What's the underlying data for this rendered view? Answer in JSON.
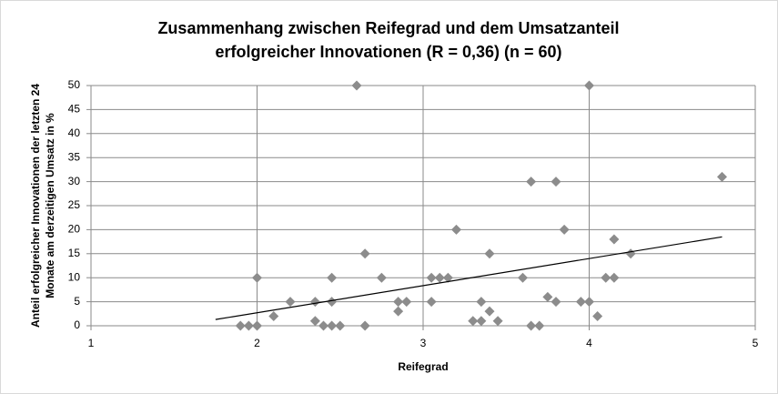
{
  "chart_data": {
    "type": "scatter",
    "title": [
      "Zusammenhang zwischen Reifegrad und dem Umsatzanteil",
      "erfolgreicher Innovationen (R = 0,36) (n = 60)"
    ],
    "x_label": "Reifegrad",
    "y_label": [
      "Anteil erfolgreicher Innovationen der letzten 24",
      "Monate am derzeitigen Umsatz in %"
    ],
    "x": [
      2.6,
      4.0,
      4.8,
      3.65,
      3.8,
      3.2,
      3.85,
      4.15,
      2.65,
      3.4,
      4.25,
      2.0,
      2.45,
      2.75,
      3.05,
      3.1,
      3.15,
      3.6,
      4.1,
      4.15,
      3.75,
      2.2,
      2.35,
      2.45,
      2.85,
      2.9,
      3.05,
      3.35,
      3.8,
      3.95,
      4.0,
      2.85,
      3.4,
      2.1,
      4.05,
      2.35,
      3.3,
      3.35,
      3.45,
      1.9,
      1.95,
      2.0,
      2.4,
      2.45,
      2.5,
      2.65,
      3.65,
      3.7
    ],
    "values": [
      50,
      50,
      31,
      30,
      30,
      20,
      20,
      18,
      15,
      15,
      15,
      10,
      10,
      10,
      10,
      10,
      10,
      10,
      10,
      10,
      6,
      5,
      5,
      5,
      5,
      5,
      5,
      5,
      5,
      5,
      5,
      3,
      3,
      2,
      2,
      1,
      1,
      1,
      1,
      0,
      0,
      0,
      0,
      0,
      0,
      0,
      0,
      0
    ],
    "color": "#8c8c8c",
    "trendline": {
      "x": [
        1.75,
        4.8
      ],
      "values": [
        1.3,
        18.5
      ]
    },
    "xlim": [
      1,
      5
    ],
    "xticks": [
      1,
      2,
      3,
      4,
      5
    ],
    "ylim": [
      0,
      50
    ],
    "yticks": [
      0,
      5,
      10,
      15,
      20,
      25,
      30,
      35,
      40,
      45,
      50
    ],
    "grid": true
  }
}
